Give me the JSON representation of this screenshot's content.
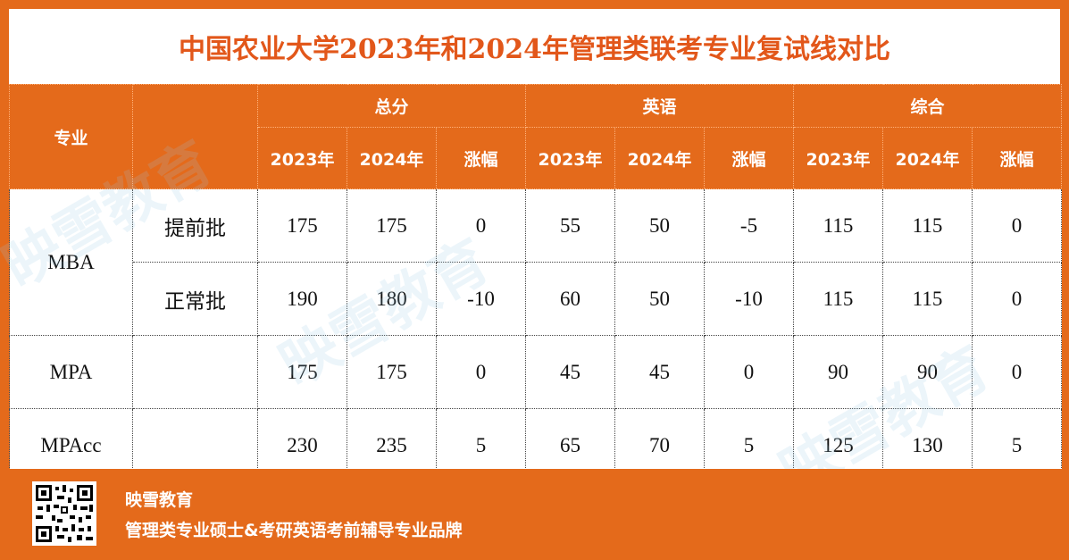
{
  "title": "中国农业大学2023年和2024年管理类联考专业复试线对比",
  "header": {
    "major": "专业",
    "groups": [
      "总分",
      "英语",
      "综合"
    ],
    "sub": [
      "2023年",
      "2024年",
      "涨幅"
    ]
  },
  "rows": [
    {
      "major": "MBA",
      "batch": "提前批",
      "total": [
        "175",
        "175",
        "0"
      ],
      "english": [
        "55",
        "50",
        "-5"
      ],
      "comp": [
        "115",
        "115",
        "0"
      ]
    },
    {
      "major": "",
      "batch": "正常批",
      "total": [
        "190",
        "180",
        "-10"
      ],
      "english": [
        "60",
        "50",
        "-10"
      ],
      "comp": [
        "115",
        "115",
        "0"
      ]
    },
    {
      "major": "MPA",
      "batch": "",
      "total": [
        "175",
        "175",
        "0"
      ],
      "english": [
        "45",
        "45",
        "0"
      ],
      "comp": [
        "90",
        "90",
        "0"
      ]
    },
    {
      "major": "MPAcc",
      "batch": "",
      "total": [
        "230",
        "235",
        "5"
      ],
      "english": [
        "65",
        "70",
        "5"
      ],
      "comp": [
        "125",
        "130",
        "5"
      ]
    }
  ],
  "footer": {
    "brand": "映雪教育",
    "slogan": "管理类专业硕士&考研英语考前辅导专业品牌"
  },
  "watermark_text": "映雪教育",
  "colors": {
    "orange": "#e46a1b",
    "title": "#e2571a",
    "blue": "#1ea0d8",
    "purple": "#7a3fa8",
    "red": "#e0121d"
  }
}
